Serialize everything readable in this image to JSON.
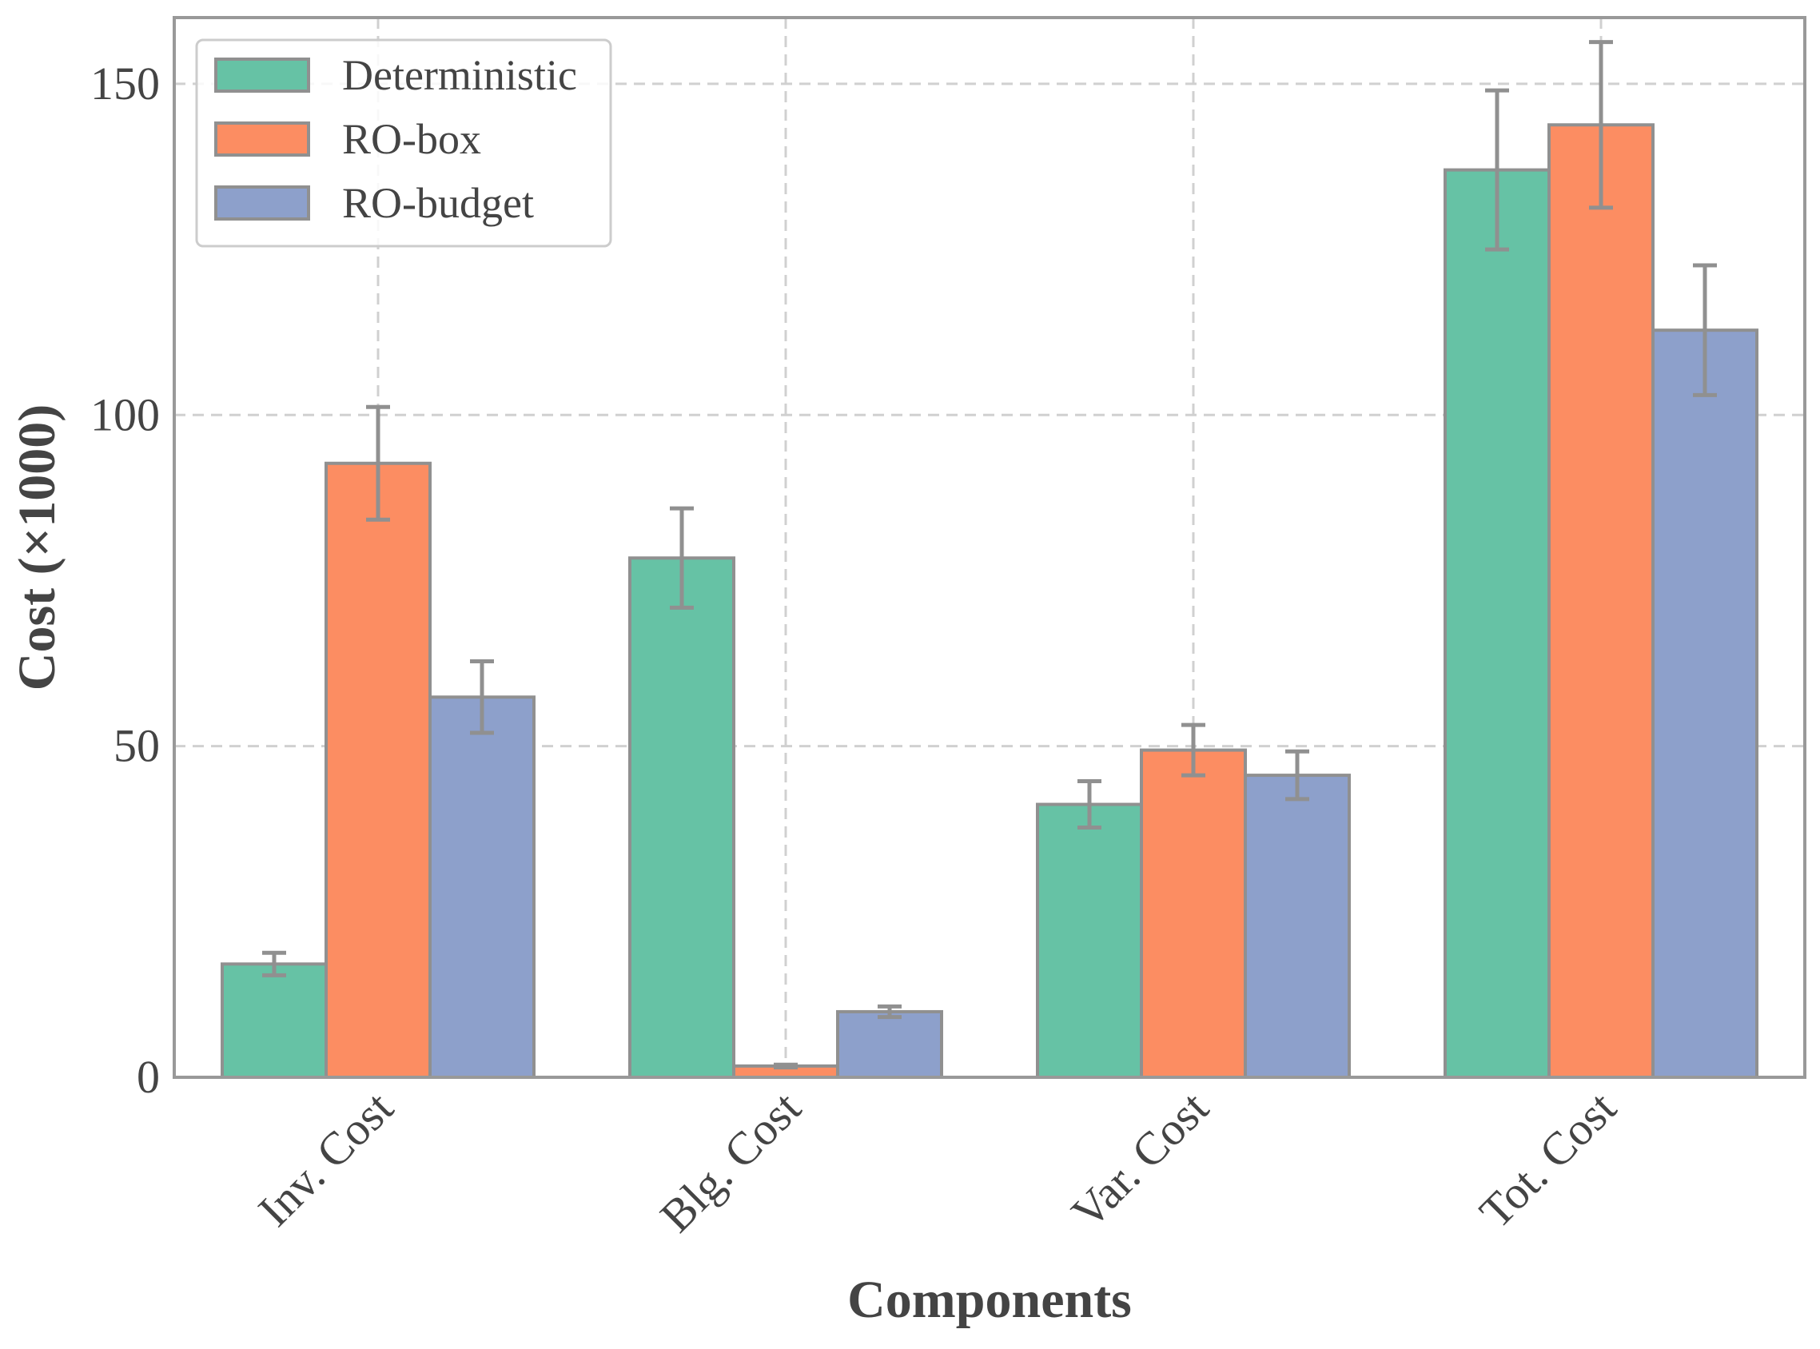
{
  "chart_data": {
    "type": "bar",
    "title": "",
    "xlabel": "Components",
    "ylabel": "Cost (×1000)",
    "categories": [
      "Inv. Cost",
      "Blg. Cost",
      "Var. Cost",
      "Tot. Cost"
    ],
    "series": [
      {
        "name": "Deterministic",
        "color": "#66c2a5",
        "values": [
          17.1,
          78.4,
          41.2,
          137.0
        ],
        "errors": [
          1.7,
          7.5,
          3.5,
          12.0
        ]
      },
      {
        "name": "RO-box",
        "color": "#fc8d62",
        "values": [
          92.7,
          1.7,
          49.4,
          143.8
        ],
        "errors": [
          8.5,
          0.2,
          3.8,
          12.5
        ]
      },
      {
        "name": "RO-budget",
        "color": "#8da0cb",
        "values": [
          57.4,
          9.9,
          45.6,
          112.8
        ],
        "errors": [
          5.4,
          0.8,
          3.6,
          9.8
        ]
      }
    ],
    "ylim": [
      0,
      160
    ],
    "yticks": [
      0,
      50,
      100,
      150
    ],
    "grid": true,
    "legend_position": "top-left",
    "bar_edge_color": "#909090",
    "error_color": "#909090"
  }
}
